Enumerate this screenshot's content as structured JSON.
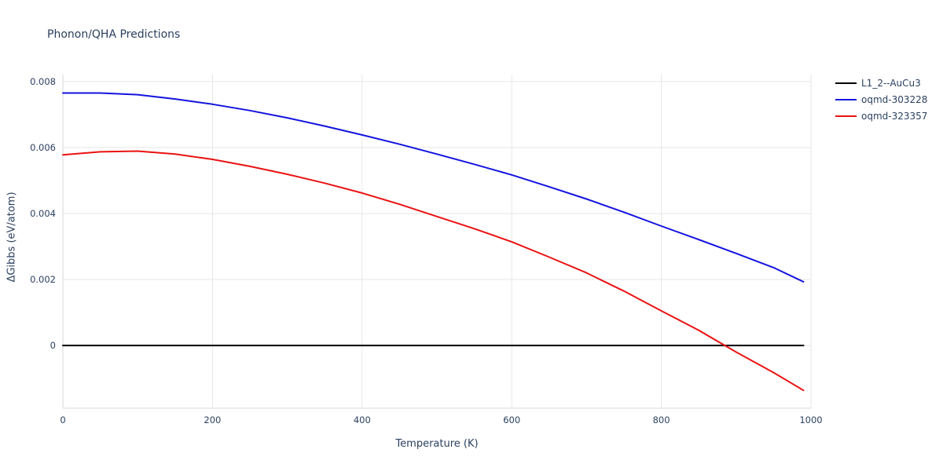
{
  "header": {
    "title": "Phonon/QHA Predictions"
  },
  "chart_data": {
    "type": "line",
    "title": "Phonon/QHA Predictions",
    "xlabel": "Temperature (K)",
    "ylabel": "ΔGibbs (eV/atom)",
    "xlim": [
      0,
      1000
    ],
    "ylim": [
      -0.0019,
      0.00821
    ],
    "x_ticks": [
      0,
      200,
      400,
      600,
      800,
      1000
    ],
    "y_ticks": [
      0,
      0.002,
      0.004,
      0.006,
      0.008
    ],
    "grid": true,
    "grid_color": "#e6e6e6",
    "axis_color": "#d4d7dd",
    "text_color": "#2a3f5f",
    "legend_position": "top-right-outside",
    "series": [
      {
        "name": "L1_2--AuCu3",
        "color": "#000000",
        "x": [
          0,
          990
        ],
        "y": [
          0,
          0
        ]
      },
      {
        "name": "oqmd-303228",
        "color": "#1313e0",
        "x": [
          0,
          50,
          100,
          150,
          200,
          250,
          300,
          350,
          400,
          450,
          500,
          550,
          600,
          650,
          700,
          750,
          800,
          850,
          900,
          950,
          990
        ],
        "y": [
          0.00765,
          0.00765,
          0.0076,
          0.00747,
          0.00731,
          0.00712,
          0.0069,
          0.00665,
          0.00638,
          0.0061,
          0.0058,
          0.00549,
          0.00517,
          0.00481,
          0.00444,
          0.00404,
          0.00362,
          0.00321,
          0.00279,
          0.00236,
          0.00193
        ]
      },
      {
        "name": "oqmd-323357",
        "color": "#ea1212",
        "x": [
          0,
          50,
          100,
          150,
          200,
          250,
          300,
          350,
          400,
          450,
          500,
          550,
          600,
          650,
          700,
          750,
          800,
          850,
          900,
          950,
          990
        ],
        "y": [
          0.00578,
          0.00587,
          0.00589,
          0.0058,
          0.00564,
          0.00543,
          0.00519,
          0.00492,
          0.00462,
          0.00428,
          0.00391,
          0.00354,
          0.00314,
          0.00268,
          0.0022,
          0.00165,
          0.00105,
          0.00046,
          -0.0002,
          -0.00082,
          -0.00136
        ]
      }
    ]
  }
}
